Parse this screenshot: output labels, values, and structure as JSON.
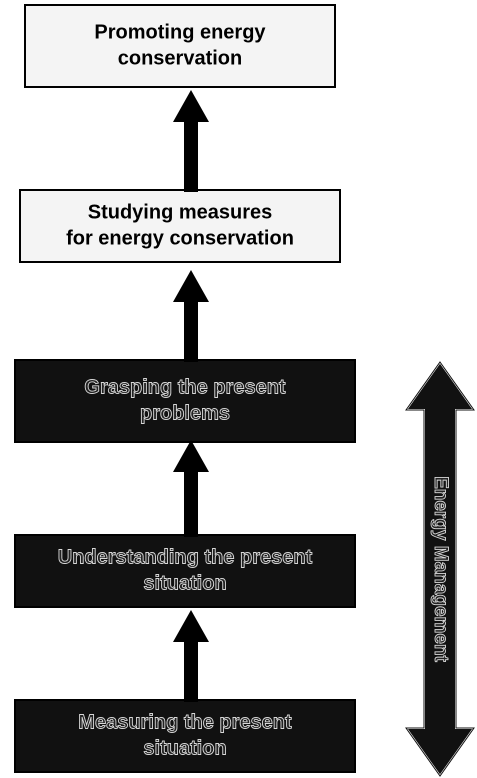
{
  "nodes": [
    {
      "lines": [
        "Promoting energy",
        "conservation"
      ],
      "style": "light"
    },
    {
      "lines": [
        "Studying measures",
        "for energy conservation"
      ],
      "style": "light"
    },
    {
      "lines": [
        "Grasping the present",
        "problems"
      ],
      "style": "dark"
    },
    {
      "lines": [
        "Understanding the present",
        "situation"
      ],
      "style": "dark"
    },
    {
      "lines": [
        "Measuring the present",
        "situation"
      ],
      "style": "dark"
    }
  ],
  "side_arrow": {
    "label": "Energy Management"
  }
}
